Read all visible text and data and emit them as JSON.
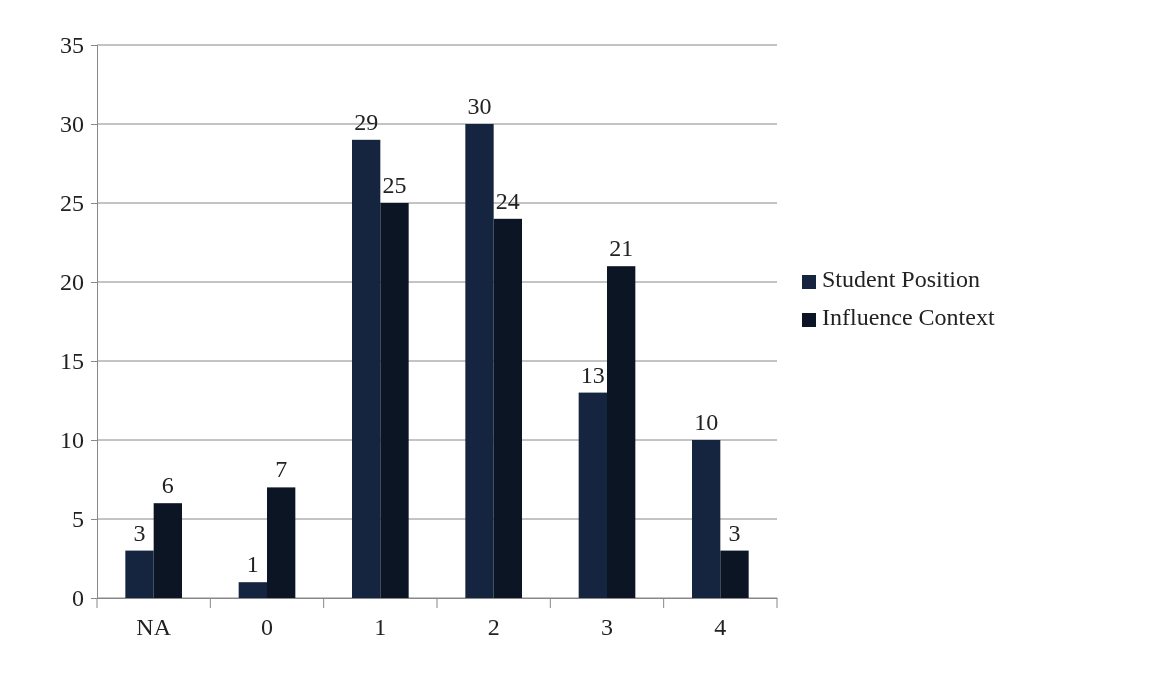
{
  "chart_data": {
    "type": "bar",
    "categories": [
      "NA",
      "0",
      "1",
      "2",
      "3",
      "4"
    ],
    "series": [
      {
        "name": "Student Position",
        "color": "#15253f",
        "values": [
          3,
          1,
          29,
          30,
          13,
          10
        ]
      },
      {
        "name": "Influence Context",
        "color": "#0b1524",
        "values": [
          6,
          7,
          25,
          24,
          21,
          3
        ]
      }
    ],
    "ylim": [
      0,
      35
    ],
    "yticks": [
      0,
      5,
      10,
      15,
      20,
      25,
      30,
      35
    ],
    "grid": "y",
    "legend": "right",
    "data_labels": true
  }
}
